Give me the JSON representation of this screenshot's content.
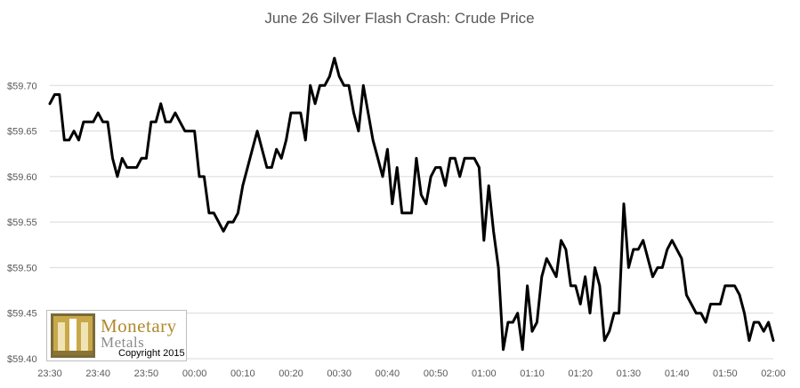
{
  "chart_data": {
    "type": "line",
    "title": "June 26 Silver Flash Crash: Crude Price",
    "xlabel": "",
    "ylabel": "",
    "ylim": [
      59.4,
      59.75
    ],
    "yticks": [
      "$59.40",
      "$59.45",
      "$59.50",
      "$59.55",
      "$59.60",
      "$59.65",
      "$59.70"
    ],
    "ytick_values": [
      59.4,
      59.45,
      59.5,
      59.55,
      59.6,
      59.65,
      59.7
    ],
    "xticks": [
      "23:30",
      "23:40",
      "23:50",
      "00:00",
      "00:10",
      "00:20",
      "00:30",
      "00:40",
      "00:50",
      "01:00",
      "01:10",
      "01:20",
      "01:30",
      "01:40",
      "01:50",
      "02:00"
    ],
    "grid": true,
    "legend": "none",
    "series": [
      {
        "x": [
          0,
          1,
          2,
          3,
          4,
          5,
          6,
          7,
          8,
          9,
          10,
          11,
          12,
          13,
          14,
          15,
          16,
          17,
          18,
          19,
          20,
          21,
          22,
          23,
          24,
          25,
          26,
          27,
          28,
          29,
          30,
          31,
          32,
          33,
          34,
          35,
          36,
          37,
          38,
          39,
          40,
          41,
          42,
          43,
          44,
          45,
          46,
          47,
          48,
          49,
          50,
          51,
          52,
          53,
          54,
          55,
          56,
          57,
          58,
          59,
          60,
          61,
          62,
          63,
          64,
          65,
          66,
          67,
          68,
          69,
          70,
          71,
          72,
          73,
          74,
          75,
          76,
          77,
          78,
          79,
          80,
          81,
          82,
          83,
          84,
          85,
          86,
          87,
          88,
          89,
          90,
          91,
          92,
          93,
          94,
          95,
          96,
          97,
          98,
          99,
          100,
          101,
          102,
          103,
          104,
          105,
          106,
          107,
          108,
          109,
          110,
          111,
          112,
          113,
          114,
          115,
          116,
          117,
          118,
          119,
          120,
          121,
          122,
          123,
          124,
          125,
          126,
          127,
          128,
          129,
          130,
          131,
          132,
          133,
          134,
          135,
          136,
          137,
          138,
          139,
          140,
          141,
          142,
          143,
          144,
          145,
          146,
          147,
          148,
          149,
          150
        ],
        "values": [
          59.68,
          59.69,
          59.69,
          59.64,
          59.64,
          59.65,
          59.64,
          59.66,
          59.66,
          59.66,
          59.67,
          59.66,
          59.66,
          59.62,
          59.6,
          59.62,
          59.61,
          59.61,
          59.61,
          59.62,
          59.62,
          59.66,
          59.66,
          59.68,
          59.66,
          59.66,
          59.67,
          59.66,
          59.65,
          59.65,
          59.65,
          59.6,
          59.6,
          59.56,
          59.56,
          59.55,
          59.54,
          59.55,
          59.55,
          59.56,
          59.59,
          59.61,
          59.63,
          59.65,
          59.63,
          59.61,
          59.61,
          59.63,
          59.62,
          59.64,
          59.67,
          59.67,
          59.67,
          59.64,
          59.7,
          59.68,
          59.7,
          59.7,
          59.71,
          59.73,
          59.71,
          59.7,
          59.7,
          59.67,
          59.65,
          59.7,
          59.67,
          59.64,
          59.62,
          59.6,
          59.63,
          59.57,
          59.61,
          59.56,
          59.56,
          59.56,
          59.62,
          59.58,
          59.57,
          59.6,
          59.61,
          59.61,
          59.59,
          59.62,
          59.62,
          59.6,
          59.62,
          59.62,
          59.62,
          59.61,
          59.53,
          59.59,
          59.54,
          59.5,
          59.41,
          59.44,
          59.44,
          59.45,
          59.41,
          59.48,
          59.43,
          59.44,
          59.49,
          59.51,
          59.5,
          59.49,
          59.53,
          59.52,
          59.48,
          59.48,
          59.46,
          59.49,
          59.45,
          59.5,
          59.48,
          59.42,
          59.43,
          59.45,
          59.45,
          59.57,
          59.5,
          59.52,
          59.52,
          59.53,
          59.51,
          59.49,
          59.5,
          59.5,
          59.52,
          59.53,
          59.52,
          59.51,
          59.47,
          59.46,
          59.45,
          59.45,
          59.44,
          59.46,
          59.46,
          59.46,
          59.48,
          59.48,
          59.48,
          59.47,
          59.45,
          59.42,
          59.44,
          59.44,
          59.43,
          59.44,
          59.42
        ]
      }
    ]
  },
  "logo": {
    "word1": "Monetary",
    "word2": "Metals",
    "copyright": "Copyright 2015"
  }
}
